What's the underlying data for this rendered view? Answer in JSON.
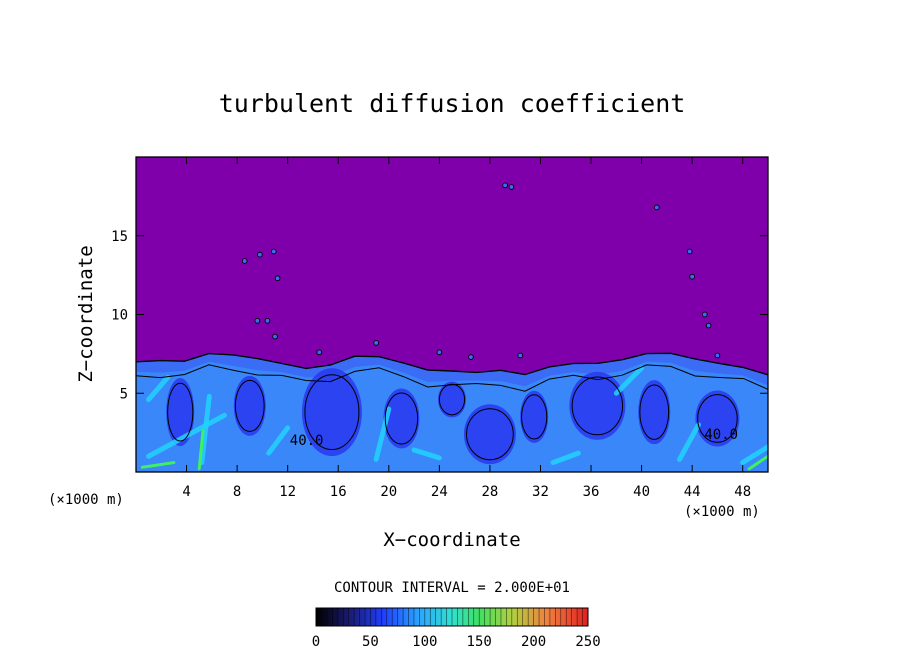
{
  "chart_data": {
    "type": "heatmap",
    "title": "turbulent diffusion coefficient",
    "xlabel": "X−coordinate",
    "ylabel": "Z−coordinate",
    "x_unit": "(×1000 m)",
    "xlim": [
      0,
      50
    ],
    "ylim": [
      0,
      20
    ],
    "x_ticks": [
      4,
      8,
      12,
      16,
      20,
      24,
      28,
      32,
      36,
      40,
      44,
      48
    ],
    "y_ticks": [
      5,
      10,
      15
    ],
    "contour_interval_text": "CONTOUR INTERVAL = 2.000E+01",
    "contour_labels": [
      {
        "text": "40.0",
        "x": 13.5,
        "z": 1.7
      },
      {
        "text": "40.0",
        "x": 46.3,
        "z": 2.1
      }
    ],
    "colorbar": {
      "min": 0,
      "max": 250,
      "ticks": [
        0,
        50,
        100,
        150,
        200,
        250
      ]
    },
    "field_summary": {
      "background_value": 0,
      "turbulent_layer_top_km": [
        7.0,
        7.2,
        7.0,
        7.4,
        7.5,
        7.3,
        6.8,
        6.5,
        6.9,
        7.4,
        7.2,
        6.9,
        6.6,
        6.4,
        6.2,
        6.5,
        6.3,
        6.6,
        6.8,
        7.0,
        7.2,
        7.4,
        7.5,
        7.3,
        6.9,
        6.5,
        6.2
      ]
    },
    "colors": {
      "background_field": "#7f00aa",
      "deep_blue": "#2a3cf0",
      "medium_blue": "#3a6cf5",
      "cyan": "#22d4ff",
      "green": "#40f060",
      "contour": "#000000"
    }
  }
}
